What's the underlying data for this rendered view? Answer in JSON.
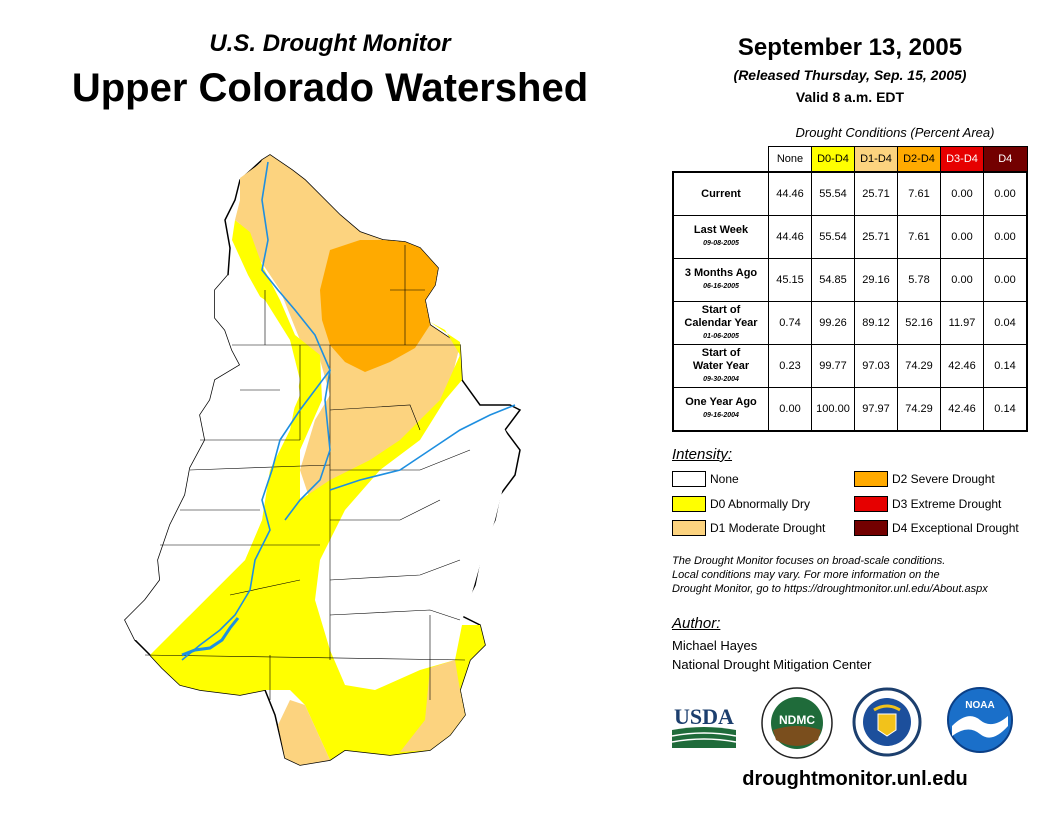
{
  "header": {
    "subtitle": "U.S. Drought Monitor",
    "title": "Upper Colorado Watershed",
    "date": "September 13, 2005",
    "released": "(Released Thursday, Sep. 15, 2005)",
    "valid": "Valid 8 a.m. EDT"
  },
  "table": {
    "caption": "Drought Conditions (Percent Area)",
    "columns": [
      {
        "label": "None",
        "color": "#ffffff",
        "text_color": "#000000"
      },
      {
        "label": "D0-D4",
        "color": "#ffff00",
        "text_color": "#000000"
      },
      {
        "label": "D1-D4",
        "color": "#fcd37f",
        "text_color": "#000000"
      },
      {
        "label": "D2-D4",
        "color": "#ffaa00",
        "text_color": "#000000"
      },
      {
        "label": "D3-D4",
        "color": "#e60000",
        "text_color": "#ffffff"
      },
      {
        "label": "D4",
        "color": "#730000",
        "text_color": "#ffffff"
      }
    ],
    "rows": [
      {
        "label": "Current",
        "label2": "",
        "date": "",
        "values": [
          "44.46",
          "55.54",
          "25.71",
          "7.61",
          "0.00",
          "0.00"
        ]
      },
      {
        "label": "Last Week",
        "label2": "",
        "date": "09-08-2005",
        "values": [
          "44.46",
          "55.54",
          "25.71",
          "7.61",
          "0.00",
          "0.00"
        ]
      },
      {
        "label": "3 Months Ago",
        "label2": "",
        "date": "06-16-2005",
        "values": [
          "45.15",
          "54.85",
          "29.16",
          "5.78",
          "0.00",
          "0.00"
        ]
      },
      {
        "label": "Start of",
        "label2": "Calendar Year",
        "date": "01-06-2005",
        "values": [
          "0.74",
          "99.26",
          "89.12",
          "52.16",
          "11.97",
          "0.04"
        ]
      },
      {
        "label": "Start of",
        "label2": "Water Year",
        "date": "09-30-2004",
        "values": [
          "0.23",
          "99.77",
          "97.03",
          "74.29",
          "42.46",
          "0.14"
        ]
      },
      {
        "label": "One Year Ago",
        "label2": "",
        "date": "09-16-2004",
        "values": [
          "0.00",
          "100.00",
          "97.97",
          "74.29",
          "42.46",
          "0.14"
        ]
      }
    ]
  },
  "legend": {
    "title": "Intensity:",
    "items": [
      {
        "label": "None",
        "color": "#ffffff"
      },
      {
        "label": "D0 Abnormally Dry",
        "color": "#ffff00"
      },
      {
        "label": "D1 Moderate Drought",
        "color": "#fcd37f"
      },
      {
        "label": "D2 Severe Drought",
        "color": "#ffaa00"
      },
      {
        "label": "D3 Extreme Drought",
        "color": "#e60000"
      },
      {
        "label": "D4 Exceptional Drought",
        "color": "#730000"
      }
    ]
  },
  "note": {
    "line1": "The Drought Monitor focuses on broad-scale conditions.",
    "line2": "Local conditions may vary. For more information on the",
    "line3": "Drought Monitor, go to https://droughtmonitor.unl.edu/About.aspx"
  },
  "author": {
    "label": "Author:",
    "name": "Michael Hayes",
    "org": "National Drought Mitigation Center"
  },
  "logos": {
    "usda": "USDA",
    "ndmc": "NDMC",
    "noaa": "NOAA"
  },
  "footer": {
    "url": "droughtmonitor.unl.edu"
  },
  "colors": {
    "river": "#1e8fe0",
    "none": "#ffffff",
    "d0": "#ffff00",
    "d1": "#fcd37f",
    "d2": "#ffaa00"
  }
}
